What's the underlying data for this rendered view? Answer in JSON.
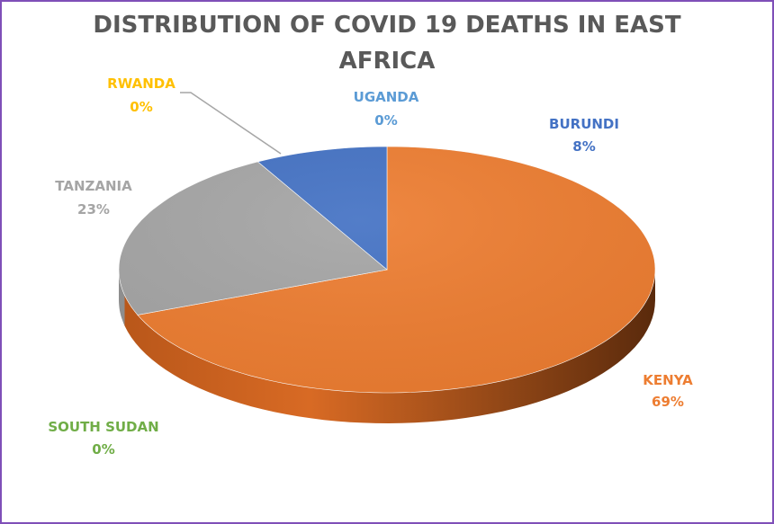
{
  "chart_data": {
    "type": "pie",
    "title_lines": [
      "DISTRIBUTION OF COVID 19 DEATHS IN EAST",
      "AFRICA"
    ],
    "slices": [
      {
        "name": "KENYA",
        "value": 69,
        "label": "69%",
        "color": "#ed7d31",
        "text_color": "#ed7d31"
      },
      {
        "name": "TANZANIA",
        "value": 23,
        "label": "23%",
        "color": "#a5a5a5",
        "text_color": "#a5a5a5"
      },
      {
        "name": "BURUNDI",
        "value": 8,
        "label": "8%",
        "color": "#4472c4",
        "text_color": "#4472c4"
      },
      {
        "name": "UGANDA",
        "value": 0,
        "label": "0%",
        "color": "#5b9bd5",
        "text_color": "#5b9bd5"
      },
      {
        "name": "RWANDA",
        "value": 0,
        "label": "0%",
        "color": "#ffc000",
        "text_color": "#ffc000"
      },
      {
        "name": "SOUTH SUDAN",
        "value": 0,
        "label": "0%",
        "color": "#70ad47",
        "text_color": "#70ad47"
      }
    ],
    "legend": "none",
    "style": "3d-pie"
  }
}
